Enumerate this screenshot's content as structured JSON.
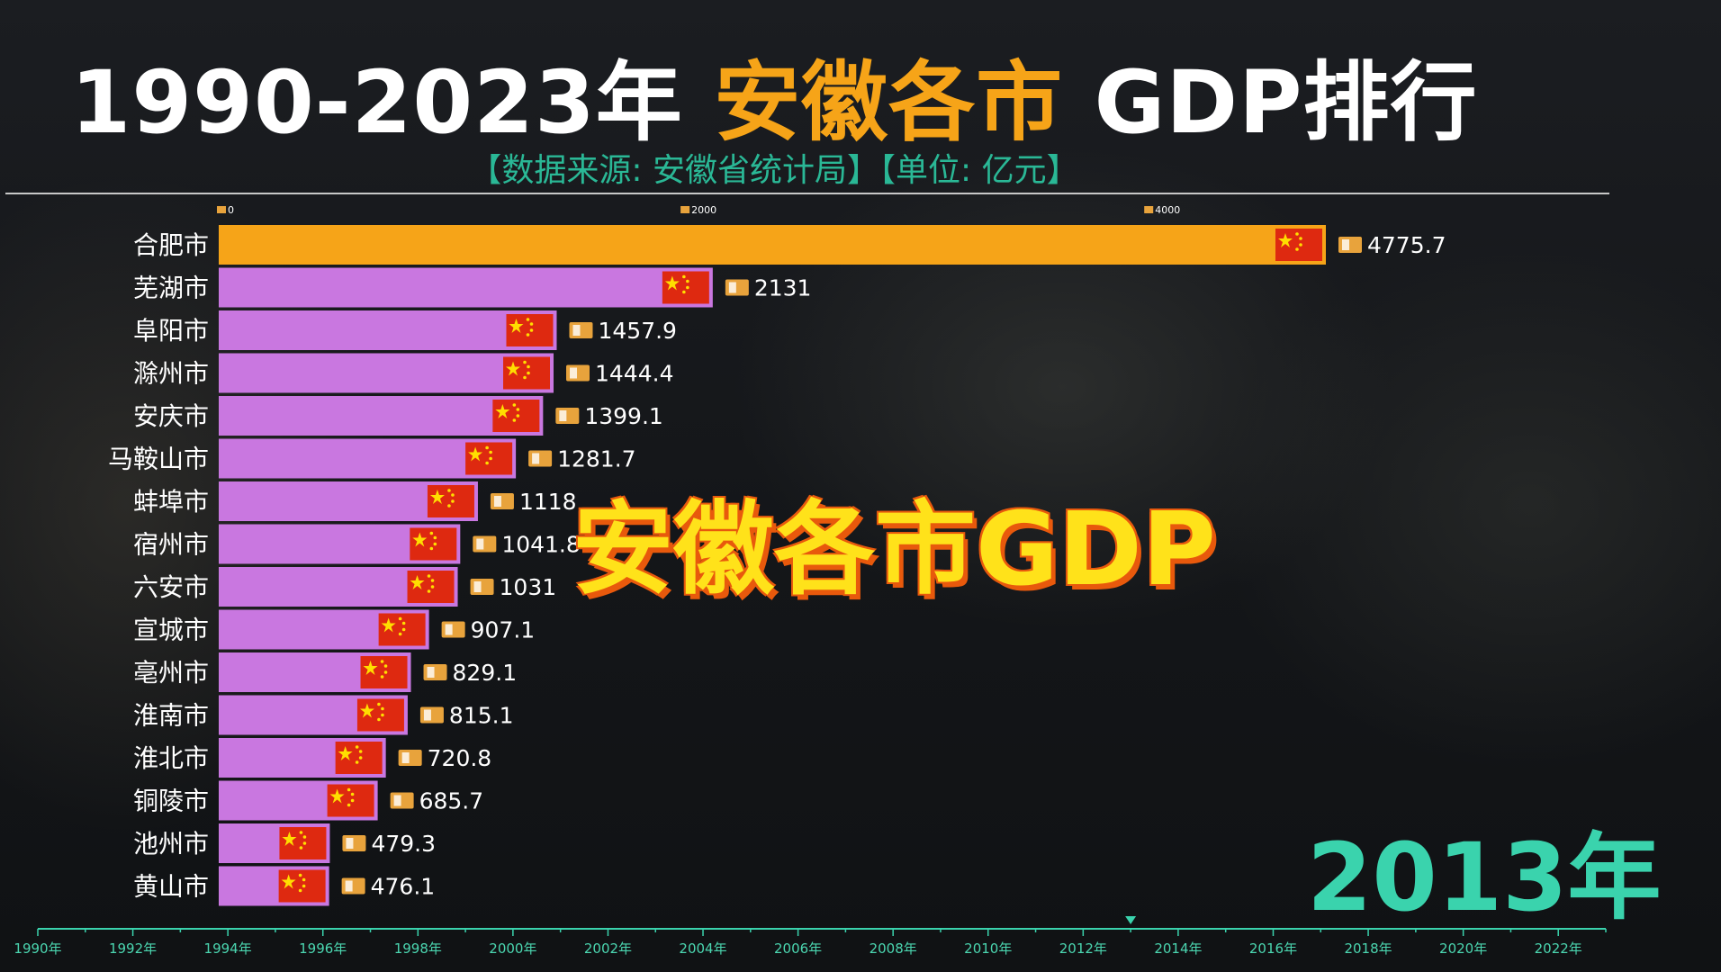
{
  "header": {
    "title_part1": "1990-2023年 ",
    "title_highlight": "安徽各市",
    "title_part2": " GDP排行",
    "subtitle": "【数据来源: 安徽省统计局】【单位: 亿元】"
  },
  "overlay_text": "安徽各市GDP",
  "current_year": "2013年",
  "colors": {
    "leader_bar": "#f6a418",
    "bar": "#c977e0",
    "title_highlight": "#f6a418",
    "subtitle": "#2ab896",
    "year": "#3ad3ad",
    "overlay": "#ffe21a"
  },
  "chart_data": {
    "type": "bar",
    "orientation": "horizontal",
    "categories": [
      "合肥市",
      "芜湖市",
      "阜阳市",
      "滁州市",
      "安庆市",
      "马鞍山市",
      "蚌埠市",
      "宿州市",
      "六安市",
      "宣城市",
      "亳州市",
      "淮南市",
      "淮北市",
      "铜陵市",
      "池州市",
      "黄山市"
    ],
    "values": [
      4775.7,
      2131,
      1457.9,
      1444.4,
      1399.1,
      1281.7,
      1118,
      1041.8,
      1031,
      907.1,
      829.1,
      815.1,
      720.8,
      685.7,
      479.3,
      476.1
    ],
    "value_labels": [
      "4775.7",
      "2131",
      "1457.9",
      "1444.4",
      "1399.1",
      "1281.7",
      "1118",
      "1041.8",
      "1031",
      "907.1",
      "829.1",
      "815.1",
      "720.8",
      "685.7",
      "479.3",
      "476.1"
    ],
    "xaxis_ticks": [
      0,
      2000,
      4000
    ],
    "xaxis_tick_labels": [
      "0",
      "2000",
      "4000"
    ],
    "timeline_years": [
      "1990年",
      "1992年",
      "1994年",
      "1996年",
      "1998年",
      "2000年",
      "2002年",
      "2004年",
      "2006年",
      "2008年",
      "2010年",
      "2012年",
      "2014年",
      "2016年",
      "2018年",
      "2020年",
      "2022年"
    ],
    "timeline_start": 1990,
    "timeline_end": 2023,
    "timeline_current": 2013
  }
}
